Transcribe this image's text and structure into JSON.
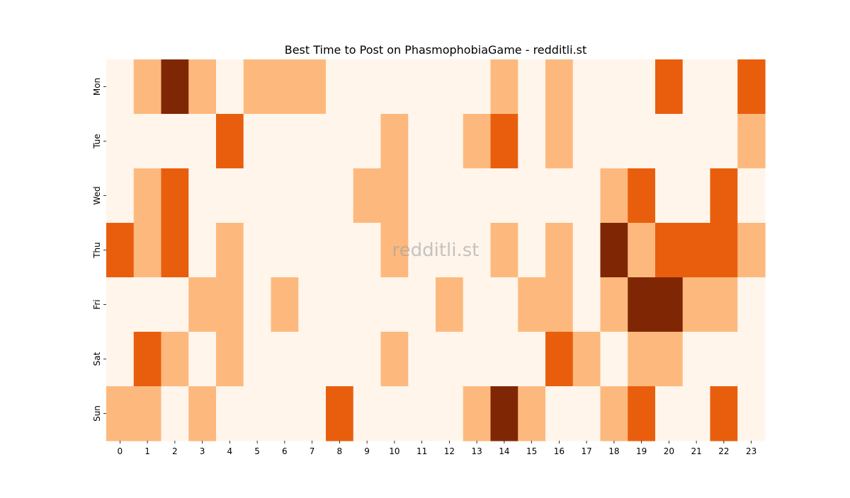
{
  "chart_data": {
    "type": "heatmap",
    "title": "Best Time to Post on PhasmophobiaGame - redditli.st",
    "watermark": "redditli.st",
    "xlabel": "",
    "ylabel": "",
    "x_categories": [
      "0",
      "1",
      "2",
      "3",
      "4",
      "5",
      "6",
      "7",
      "8",
      "9",
      "10",
      "11",
      "12",
      "13",
      "14",
      "15",
      "16",
      "17",
      "18",
      "19",
      "20",
      "21",
      "22",
      "23"
    ],
    "y_categories": [
      "Mon",
      "Tue",
      "Wed",
      "Thu",
      "Fri",
      "Sat",
      "Sun"
    ],
    "colorbar": false,
    "color_scale": [
      "#fff5eb",
      "#fdb97d",
      "#e95e0d",
      "#7f2704"
    ],
    "values": [
      [
        0,
        1,
        3,
        1,
        0,
        1,
        1,
        1,
        0,
        0,
        0,
        0,
        0,
        0,
        1,
        0,
        1,
        0,
        0,
        0,
        2,
        0,
        0,
        2
      ],
      [
        0,
        0,
        0,
        0,
        2,
        0,
        0,
        0,
        0,
        0,
        1,
        0,
        0,
        1,
        2,
        0,
        1,
        0,
        0,
        0,
        0,
        0,
        0,
        1
      ],
      [
        0,
        1,
        2,
        0,
        0,
        0,
        0,
        0,
        0,
        1,
        1,
        0,
        0,
        0,
        0,
        0,
        0,
        0,
        1,
        2,
        0,
        0,
        2,
        0
      ],
      [
        2,
        1,
        2,
        0,
        1,
        0,
        0,
        0,
        0,
        0,
        1,
        0,
        0,
        0,
        1,
        0,
        1,
        0,
        3,
        1,
        2,
        2,
        2,
        1
      ],
      [
        0,
        0,
        0,
        1,
        1,
        0,
        1,
        0,
        0,
        0,
        0,
        0,
        1,
        0,
        0,
        1,
        1,
        0,
        1,
        3,
        3,
        1,
        1,
        0
      ],
      [
        0,
        2,
        1,
        0,
        1,
        0,
        0,
        0,
        0,
        0,
        1,
        0,
        0,
        0,
        0,
        0,
        2,
        1,
        0,
        1,
        1,
        0,
        0,
        0
      ],
      [
        1,
        1,
        0,
        1,
        0,
        0,
        0,
        0,
        2,
        0,
        0,
        0,
        0,
        1,
        3,
        1,
        0,
        0,
        1,
        2,
        0,
        0,
        2,
        0
      ]
    ]
  }
}
